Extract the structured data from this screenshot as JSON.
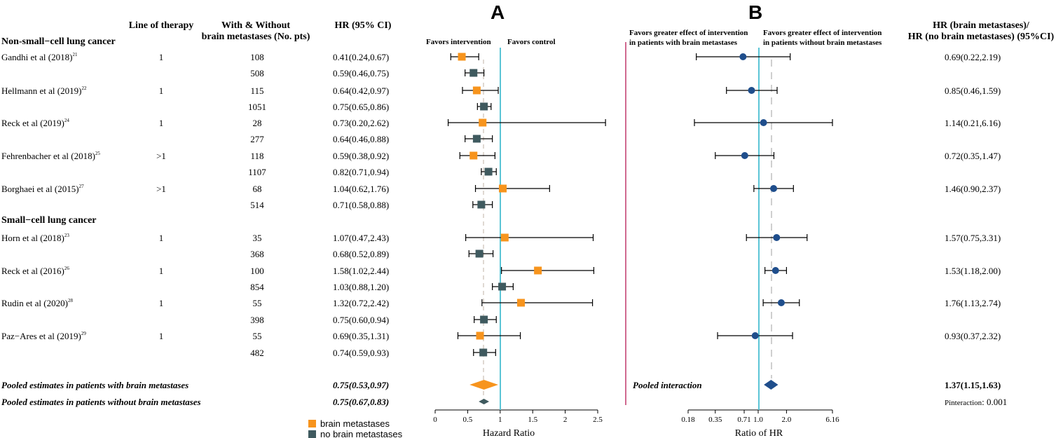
{
  "panels": {
    "a": "A",
    "b": "B"
  },
  "headers": {
    "line_of_therapy": "Line of therapy",
    "with_without_1": "With & Without",
    "with_without_2": "brain metastases (No. pts)",
    "hr_ci": "HR (95% CI)",
    "ratio_1": "HR (brain metastases)/",
    "ratio_2": "HR (no brain metastases) (95%CI)"
  },
  "sections": {
    "nsclc": "Non-small−cell lung cancer",
    "sclc": "Small−cell lung cancer"
  },
  "favors": {
    "a_left": "Favors intervention",
    "a_right": "Favors control",
    "b_left_1": "Favors greater effect of intervention",
    "b_left_2": "in patients with brain metastases",
    "b_right_1": "Favors greater effect of intervention",
    "b_right_2": "in patients without brain metastases"
  },
  "colors": {
    "brain": "#f7941d",
    "nobrain": "#3f5a5f",
    "ratio": "#1f4e8c",
    "refline": "#5bc5d6",
    "divider": "#c0396b"
  },
  "studies": [
    {
      "name": "Gandhi et al (2018)",
      "ref": "21",
      "line": "1",
      "bm": {
        "n": "108",
        "hr": 0.41,
        "lo": 0.24,
        "hi": 0.67,
        "label": "0.41(0.24,0.67)"
      },
      "nbm": {
        "n": "508",
        "hr": 0.59,
        "lo": 0.46,
        "hi": 0.75,
        "label": "0.59(0.46,0.75)"
      },
      "ratio": {
        "est": 0.69,
        "lo": 0.22,
        "hi": 2.19,
        "label": "0.69(0.22,2.19)"
      }
    },
    {
      "name": "Hellmann et al (2019)",
      "ref": "22",
      "line": "1",
      "bm": {
        "n": "115",
        "hr": 0.64,
        "lo": 0.42,
        "hi": 0.97,
        "label": "0.64(0.42,0.97)"
      },
      "nbm": {
        "n": "1051",
        "hr": 0.75,
        "lo": 0.65,
        "hi": 0.86,
        "label": "0.75(0.65,0.86)"
      },
      "ratio": {
        "est": 0.85,
        "lo": 0.46,
        "hi": 1.59,
        "label": "0.85(0.46,1.59)"
      }
    },
    {
      "name": "Reck et al (2019)",
      "ref": "24",
      "line": "1",
      "bm": {
        "n": "28",
        "hr": 0.73,
        "lo": 0.2,
        "hi": 2.62,
        "label": "0.73(0.20,2.62)"
      },
      "nbm": {
        "n": "277",
        "hr": 0.64,
        "lo": 0.46,
        "hi": 0.88,
        "label": "0.64(0.46,0.88)"
      },
      "ratio": {
        "est": 1.14,
        "lo": 0.21,
        "hi": 6.16,
        "label": "1.14(0.21,6.16)"
      }
    },
    {
      "name": "Fehrenbacher et al (2018)",
      "ref": "25",
      "line": ">1",
      "bm": {
        "n": "118",
        "hr": 0.59,
        "lo": 0.38,
        "hi": 0.92,
        "label": "0.59(0.38,0.92)"
      },
      "nbm": {
        "n": "1107",
        "hr": 0.82,
        "lo": 0.71,
        "hi": 0.94,
        "label": "0.82(0.71,0.94)"
      },
      "ratio": {
        "est": 0.72,
        "lo": 0.35,
        "hi": 1.47,
        "label": "0.72(0.35,1.47)"
      }
    },
    {
      "name": "Borghaei et al (2015)",
      "ref": "27",
      "line": ">1",
      "bm": {
        "n": "68",
        "hr": 1.04,
        "lo": 0.62,
        "hi": 1.76,
        "label": "1.04(0.62,1.76)"
      },
      "nbm": {
        "n": "514",
        "hr": 0.71,
        "lo": 0.58,
        "hi": 0.88,
        "label": "0.71(0.58,0.88)"
      },
      "ratio": {
        "est": 1.46,
        "lo": 0.9,
        "hi": 2.37,
        "label": "1.46(0.90,2.37)"
      }
    },
    {
      "name": "Horn et al (2018)",
      "ref": "23",
      "line": "1",
      "bm": {
        "n": "35",
        "hr": 1.07,
        "lo": 0.47,
        "hi": 2.43,
        "label": "1.07(0.47,2.43)"
      },
      "nbm": {
        "n": "368",
        "hr": 0.68,
        "lo": 0.52,
        "hi": 0.89,
        "label": "0.68(0.52,0.89)"
      },
      "ratio": {
        "est": 1.57,
        "lo": 0.75,
        "hi": 3.31,
        "label": "1.57(0.75,3.31)"
      }
    },
    {
      "name": "Reck et al (2016)",
      "ref": "26",
      "line": "1",
      "bm": {
        "n": "100",
        "hr": 1.58,
        "lo": 1.02,
        "hi": 2.44,
        "label": "1.58(1.02,2.44)"
      },
      "nbm": {
        "n": "854",
        "hr": 1.03,
        "lo": 0.88,
        "hi": 1.2,
        "label": "1.03(0.88,1.20)"
      },
      "ratio": {
        "est": 1.53,
        "lo": 1.18,
        "hi": 2.0,
        "label": "1.53(1.18,2.00)"
      }
    },
    {
      "name": "Rudin et al (2020)",
      "ref": "28",
      "line": "1",
      "bm": {
        "n": "55",
        "hr": 1.32,
        "lo": 0.72,
        "hi": 2.42,
        "label": "1.32(0.72,2.42)"
      },
      "nbm": {
        "n": "398",
        "hr": 0.75,
        "lo": 0.6,
        "hi": 0.94,
        "label": "0.75(0.60,0.94)"
      },
      "ratio": {
        "est": 1.76,
        "lo": 1.13,
        "hi": 2.74,
        "label": "1.76(1.13,2.74)"
      }
    },
    {
      "name": "Paz−Ares et al (2019)",
      "ref": "29",
      "line": "1",
      "bm": {
        "n": "55",
        "hr": 0.69,
        "lo": 0.35,
        "hi": 1.31,
        "label": "0.69(0.35,1.31)"
      },
      "nbm": {
        "n": "482",
        "hr": 0.74,
        "lo": 0.59,
        "hi": 0.93,
        "label": "0.74(0.59,0.93)"
      },
      "ratio": {
        "est": 0.93,
        "lo": 0.37,
        "hi": 2.32,
        "label": "0.93(0.37,2.32)"
      }
    }
  ],
  "pooled": {
    "bm": {
      "label": "Pooled estimates in patients with brain metastases",
      "hr": 0.75,
      "lo": 0.53,
      "hi": 0.97,
      "text": "0.75(0.53,0.97)"
    },
    "nbm": {
      "label": "Pooled estimates in patients without brain metastases",
      "hr": 0.75,
      "lo": 0.67,
      "hi": 0.83,
      "text": "0.75(0.67,0.83)"
    },
    "interaction": {
      "label": "Pooled interaction",
      "est": 1.37,
      "lo": 1.15,
      "hi": 1.63,
      "text": "1.37(1.15,1.63)"
    },
    "p_label": "Pinteraction",
    "p_value": ": 0.001"
  },
  "chart_data": [
    {
      "type": "forest",
      "panel": "A",
      "xlabel": "Hazard Ratio",
      "xlim": [
        0,
        2.5
      ],
      "ticks": [
        0,
        0.5,
        1,
        1.5,
        2,
        2.5
      ],
      "tick_labels": [
        "0",
        "0.5",
        "1",
        "1.5",
        "2",
        "2.5"
      ],
      "reference_line": 1,
      "legend": [
        "brain metastases",
        "no brain metastases"
      ],
      "legend_position": "bottom-left"
    },
    {
      "type": "forest",
      "panel": "B",
      "xlabel": "Ratio of HR",
      "scale": "log",
      "xlim": [
        0.18,
        6.16
      ],
      "ticks": [
        0.18,
        0.35,
        0.71,
        1.0,
        2.0,
        6.16
      ],
      "tick_labels": [
        "0.18",
        "0.35",
        "0.71",
        "1.0",
        "2.0",
        "6.16"
      ],
      "reference_line": 1.0
    }
  ]
}
